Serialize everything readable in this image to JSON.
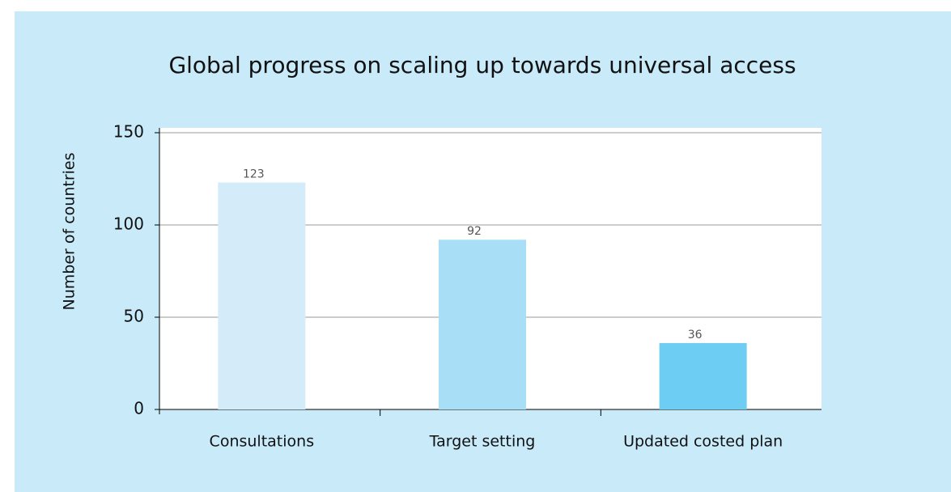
{
  "chart_data": {
    "type": "bar",
    "title": "Global progress on scaling up towards universal access",
    "y_label": "Number of countries",
    "categories": [
      "Consultations",
      "Target setting",
      "Updated costed plan"
    ],
    "values": [
      123,
      92,
      36
    ],
    "colors": [
      "#d4ebfa",
      "#a8dff7",
      "#6dcdf2"
    ],
    "ylim": [
      0,
      150
    ],
    "yticks": [
      0,
      50,
      100,
      150
    ],
    "grid": true
  }
}
